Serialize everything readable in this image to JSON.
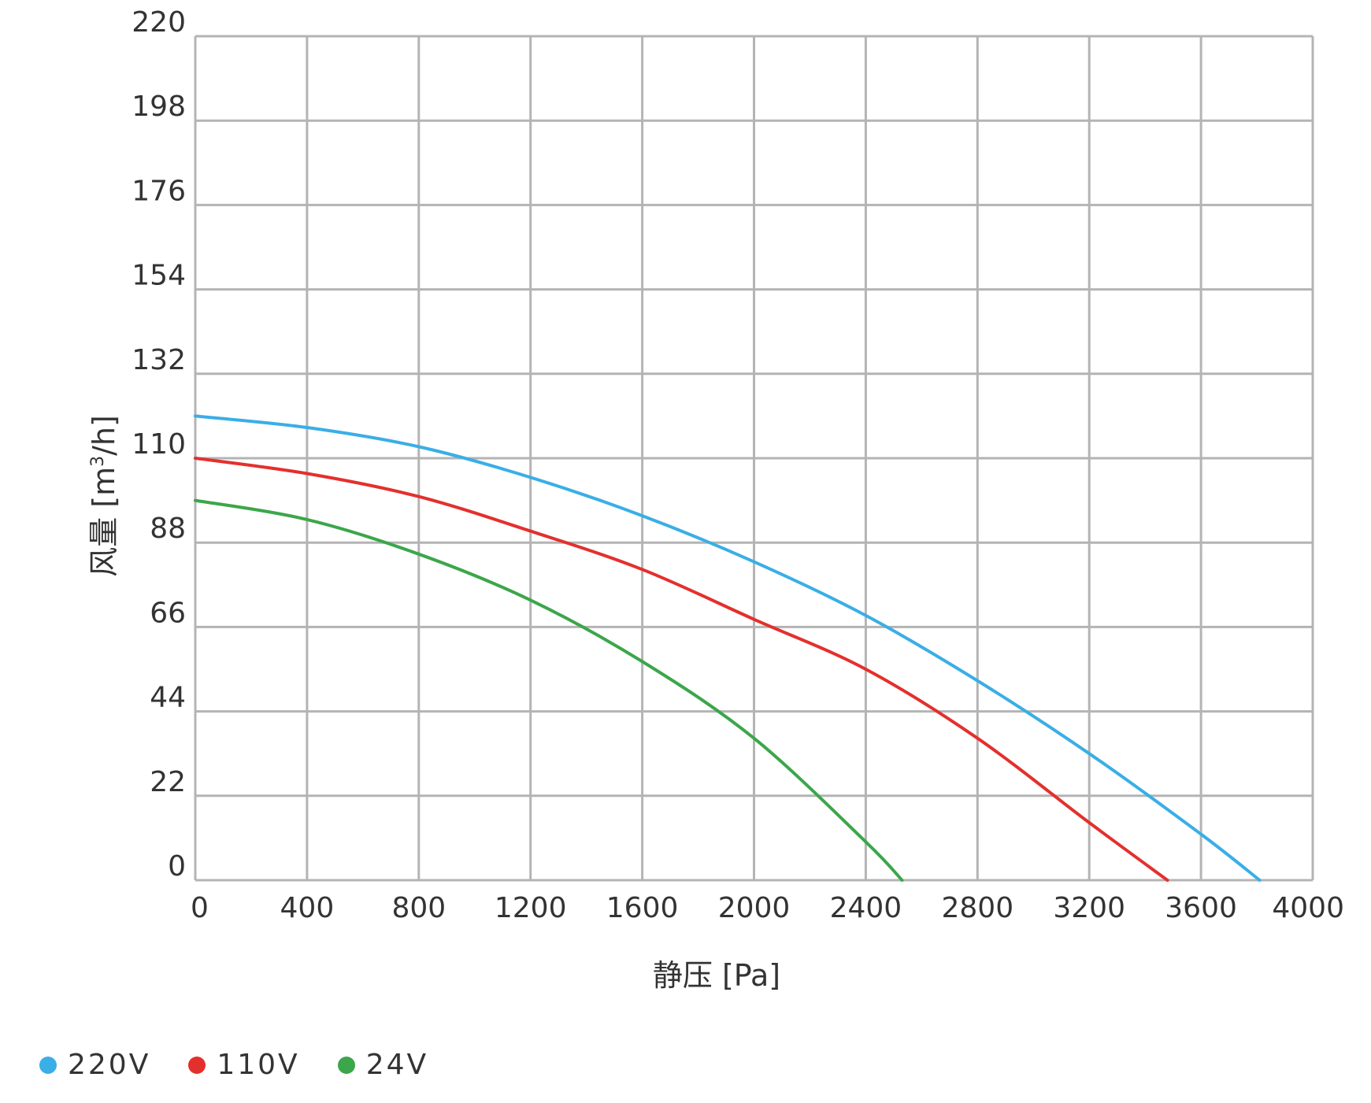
{
  "chart_data": {
    "type": "line",
    "xlabel": "静压 [Pa]",
    "ylabel_main": "风量 [m",
    "ylabel_sup": "3",
    "ylabel_end": "/h]",
    "xlim": [
      0,
      4000
    ],
    "ylim": [
      0,
      220
    ],
    "x_ticks": [
      "0",
      "400",
      "800",
      "1200",
      "1600",
      "2000",
      "2400",
      "2800",
      "3200",
      "3600",
      "4000"
    ],
    "y_ticks": [
      "0",
      "22",
      "44",
      "66",
      "88",
      "110",
      "132",
      "154",
      "176",
      "198",
      "220"
    ],
    "grid": true,
    "legend_position": "bottom-left",
    "series": [
      {
        "name": "220V",
        "color": "#3aaee6",
        "x": [
          0,
          400,
          800,
          1200,
          1600,
          2000,
          2400,
          2800,
          3200,
          3600,
          3810
        ],
        "y": [
          121,
          118,
          113,
          105,
          95,
          83,
          69,
          52,
          33,
          12,
          0
        ]
      },
      {
        "name": "110V",
        "color": "#e3302d",
        "x": [
          0,
          400,
          800,
          1200,
          1600,
          2000,
          2400,
          2800,
          3200,
          3480
        ],
        "y": [
          110,
          106,
          100,
          91,
          81,
          68,
          55,
          37,
          15,
          0
        ]
      },
      {
        "name": "24V",
        "color": "#3ca64a",
        "x": [
          0,
          400,
          800,
          1200,
          1600,
          2000,
          2400,
          2530
        ],
        "y": [
          99,
          94,
          85,
          73,
          57,
          37,
          10,
          0
        ]
      }
    ]
  }
}
